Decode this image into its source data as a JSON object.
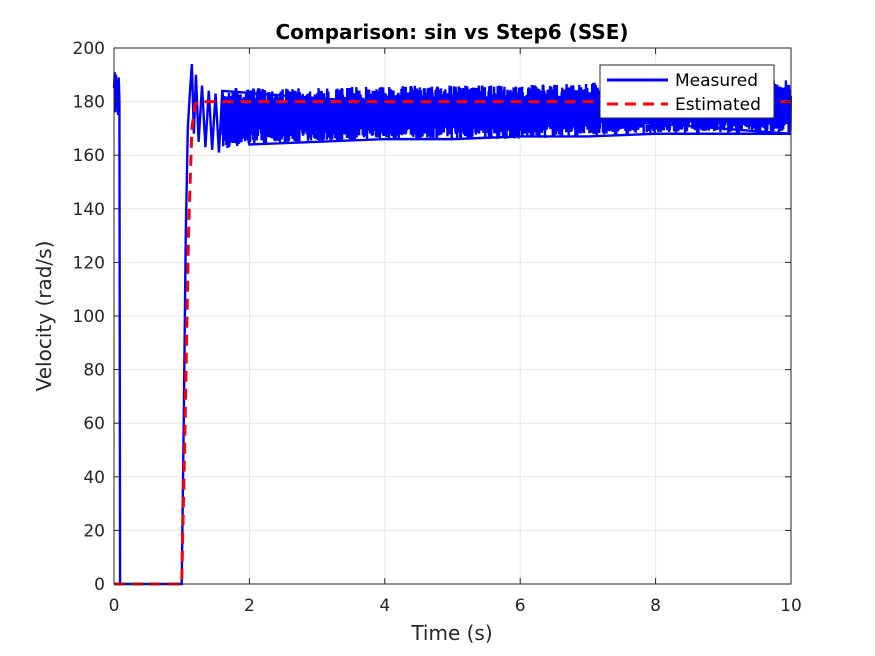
{
  "chart_data": {
    "type": "line",
    "title": "Comparison: sin vs Step6 (SSE)",
    "xlabel": "Time (s)",
    "ylabel": "Velocity (rad/s)",
    "xlim": [
      0,
      10
    ],
    "ylim": [
      0,
      200
    ],
    "xticks": [
      0,
      2,
      4,
      6,
      8,
      10
    ],
    "yticks": [
      0,
      20,
      40,
      60,
      80,
      100,
      120,
      140,
      160,
      180,
      200
    ],
    "grid": true,
    "legend_position": "top-right",
    "series": [
      {
        "name": "Measured",
        "color": "#0000ff",
        "style": "solid",
        "points": [
          [
            0.0,
            185
          ],
          [
            0.01,
            191
          ],
          [
            0.02,
            176
          ],
          [
            0.03,
            190
          ],
          [
            0.04,
            178
          ],
          [
            0.05,
            188
          ],
          [
            0.06,
            175
          ],
          [
            0.07,
            189
          ],
          [
            0.08,
            180
          ],
          [
            0.09,
            0
          ],
          [
            0.3,
            0
          ],
          [
            0.6,
            0
          ],
          [
            1.0,
            0
          ],
          [
            1.03,
            60
          ],
          [
            1.06,
            130
          ],
          [
            1.09,
            170
          ],
          [
            1.12,
            183
          ],
          [
            1.15,
            194
          ],
          [
            1.18,
            168
          ],
          [
            1.21,
            190
          ],
          [
            1.25,
            165
          ],
          [
            1.3,
            186
          ],
          [
            1.35,
            163
          ],
          [
            1.4,
            184
          ],
          [
            1.45,
            162
          ],
          [
            1.5,
            183
          ],
          [
            1.55,
            161
          ],
          [
            1.6,
            184
          ],
          [
            1.7,
            163
          ],
          [
            1.8,
            185
          ],
          [
            2.0,
            164
          ],
          [
            3.0,
            165
          ],
          [
            4.0,
            166
          ],
          [
            5.0,
            166
          ],
          [
            6.0,
            167
          ],
          [
            7.0,
            167
          ],
          [
            8.0,
            168
          ],
          [
            9.0,
            168
          ],
          [
            10.0,
            168
          ]
        ],
        "band": {
          "x": [
            1.6,
            2.0,
            3.0,
            4.0,
            5.0,
            6.0,
            7.0,
            8.0,
            9.0,
            10.0
          ],
          "upper": [
            184,
            185,
            185,
            186,
            186,
            186,
            187,
            188,
            188,
            188
          ],
          "lower": [
            162,
            164,
            165,
            166,
            166,
            166,
            167,
            168,
            168,
            168
          ]
        }
      },
      {
        "name": "Estimated",
        "color": "#ff0000",
        "style": "dashed",
        "points": [
          [
            0.0,
            0
          ],
          [
            1.0,
            0
          ],
          [
            1.05,
            60
          ],
          [
            1.1,
            130
          ],
          [
            1.15,
            170
          ],
          [
            1.2,
            179
          ],
          [
            1.25,
            180
          ],
          [
            10.0,
            180
          ]
        ]
      }
    ]
  }
}
